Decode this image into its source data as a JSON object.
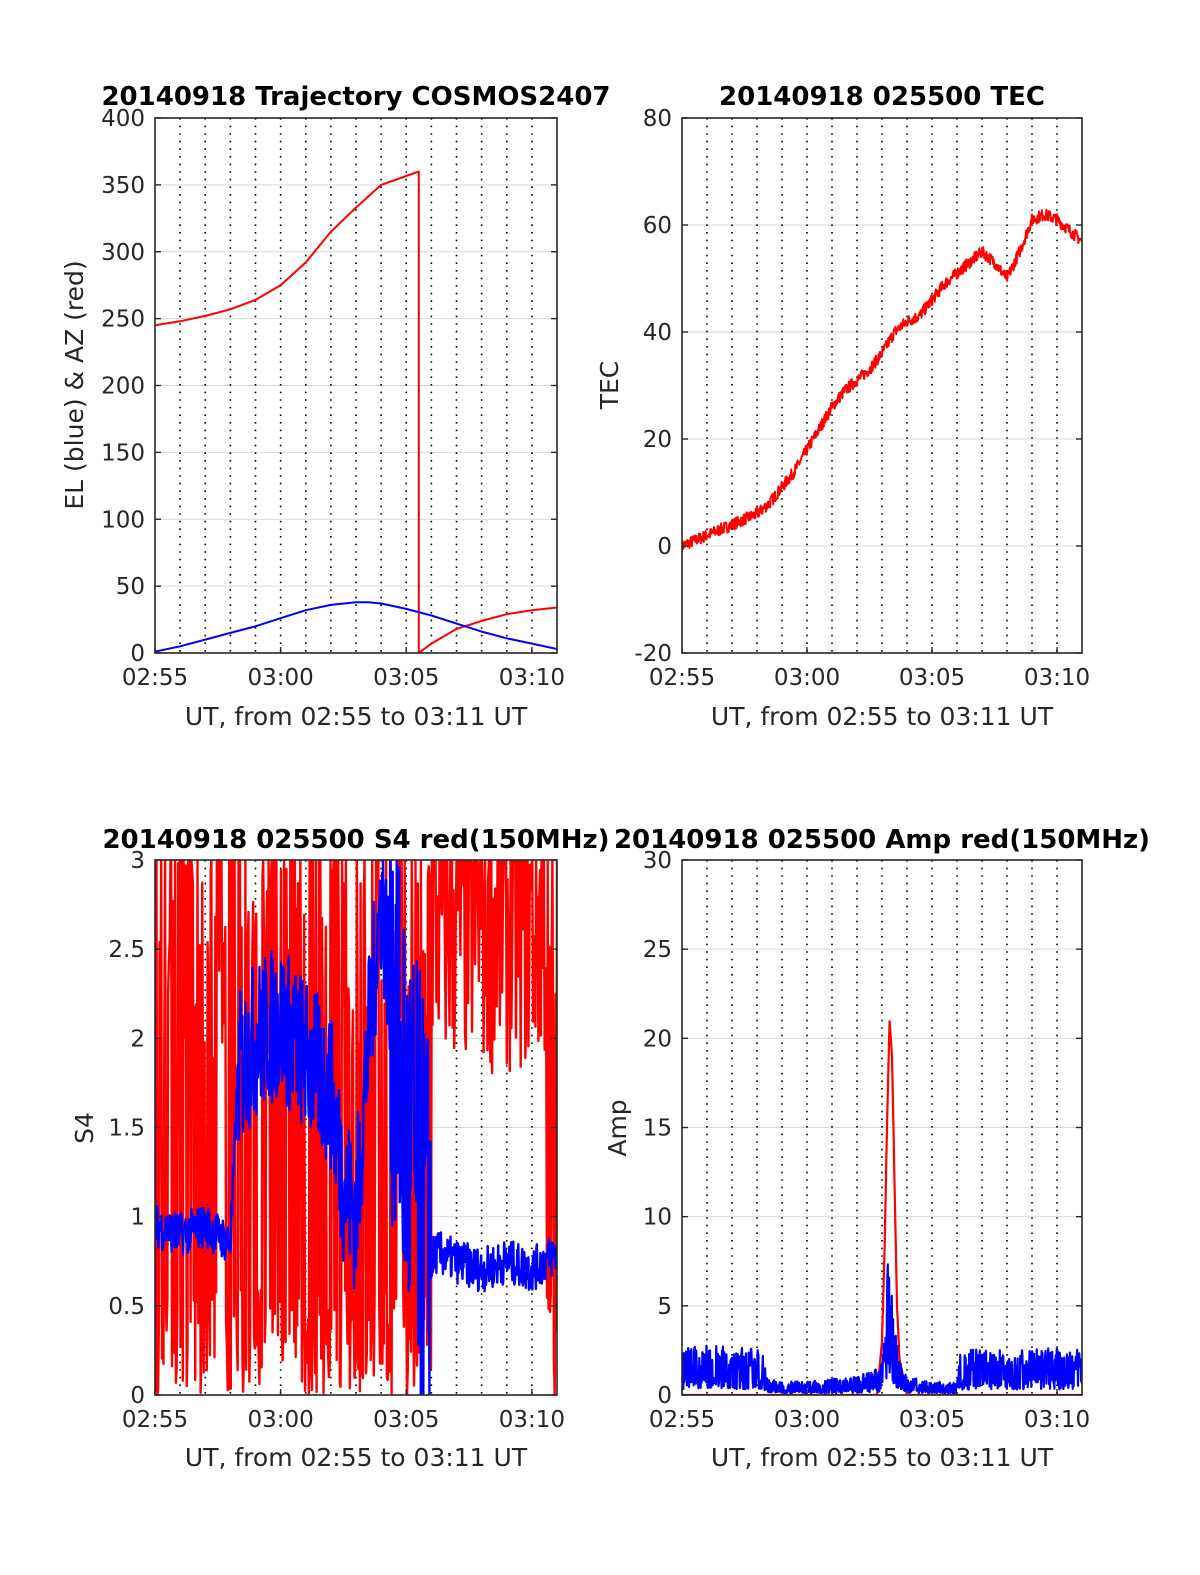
{
  "colors": {
    "series_red": "#ff0000",
    "series_blue": "#0000ff",
    "grid": "#d9d9d9",
    "dotted": "#000000"
  },
  "chart_data": [
    {
      "type": "line",
      "title": "20140918 Trajectory COSMOS2407",
      "xlabel": "UT, from 02:55 to 03:11 UT",
      "ylabel": "EL (blue) & AZ (red)",
      "x_unit": "minutes after 02:55",
      "xlim": [
        0,
        16
      ],
      "ylim": [
        0,
        400
      ],
      "xtick_values": [
        0,
        5,
        10,
        15
      ],
      "xtick_labels": [
        "02:55",
        "03:00",
        "03:05",
        "03:10"
      ],
      "ytick_labels": [
        "0",
        "50",
        "100",
        "150",
        "200",
        "250",
        "300",
        "350",
        "400"
      ],
      "grid": "horizontal solid + vertical dotted every minute",
      "series": [
        {
          "color": "#ff0000",
          "x": [
            0,
            1,
            2,
            3,
            4,
            5,
            6,
            7,
            8,
            9,
            10.5,
            10.5,
            11,
            12,
            13,
            14,
            15,
            16
          ],
          "y": [
            245,
            248,
            252,
            257,
            264,
            275,
            292,
            315,
            333,
            350,
            360,
            0,
            7,
            18,
            24,
            29,
            32,
            34
          ]
        },
        {
          "color": "#0000ff",
          "x": [
            0,
            1,
            2,
            3,
            4,
            5,
            6,
            7,
            8,
            8.5,
            9,
            10,
            11,
            12,
            13,
            14,
            15,
            16
          ],
          "y": [
            1,
            5,
            10,
            15,
            20,
            26,
            32,
            36,
            38,
            38,
            37,
            33,
            28,
            22,
            16,
            11,
            7,
            3
          ]
        }
      ]
    },
    {
      "type": "line",
      "title": "20140918 025500 TEC",
      "xlabel": "UT, from 02:55 to 03:11 UT",
      "ylabel": "TEC",
      "x_unit": "minutes after 02:55",
      "xlim": [
        0,
        16
      ],
      "ylim": [
        -20,
        80
      ],
      "xtick_values": [
        0,
        5,
        10,
        15
      ],
      "xtick_labels": [
        "02:55",
        "03:00",
        "03:05",
        "03:10"
      ],
      "ytick_labels": [
        "-20",
        "0",
        "20",
        "40",
        "60",
        "80"
      ],
      "grid": "horizontal solid + vertical dotted every minute",
      "series": [
        {
          "color": "#ff0000",
          "x": [
            0,
            0.5,
            1,
            1.5,
            2,
            2.5,
            3,
            3.5,
            4,
            4.5,
            5,
            5.5,
            6,
            6.5,
            7,
            7.5,
            8,
            8.5,
            9,
            9.5,
            10,
            10.5,
            11,
            11.5,
            12,
            12.5,
            13,
            13.5,
            14,
            14.5,
            15,
            15.5,
            16
          ],
          "y": [
            0,
            1,
            2,
            3,
            4,
            5,
            6,
            8,
            11,
            14,
            18,
            22,
            26,
            29,
            31,
            33,
            36,
            40,
            42,
            43,
            46,
            49,
            51,
            53,
            55,
            53,
            50,
            55,
            61,
            62,
            61,
            59,
            57
          ]
        }
      ]
    },
    {
      "type": "line",
      "title": "20140918 025500 S4 red(150MHz)",
      "xlabel": "UT, from 02:55 to 03:11 UT",
      "ylabel": "S4",
      "x_unit": "minutes after 02:55",
      "xlim": [
        0,
        16
      ],
      "ylim": [
        0,
        3
      ],
      "xtick_values": [
        0,
        5,
        10,
        15
      ],
      "xtick_labels": [
        "02:55",
        "03:00",
        "03:05",
        "03:10"
      ],
      "ytick_labels": [
        "0",
        "0.5",
        "1",
        "1.5",
        "2",
        "2.5",
        "3"
      ],
      "grid": "horizontal solid + vertical dotted every minute",
      "series": [
        {
          "color": "#ff0000",
          "pattern": "rapid oscillation 0 to >3 across whole interval"
        },
        {
          "color": "#0000ff",
          "x": [
            0,
            1,
            2,
            3,
            3.3,
            4,
            5,
            6,
            7,
            7.5,
            8,
            8.5,
            9,
            10,
            11,
            11.2,
            12,
            13,
            14,
            15,
            16
          ],
          "y": [
            0.95,
            0.9,
            0.95,
            0.85,
            1.8,
            2.0,
            2.1,
            1.9,
            1.7,
            1.2,
            1.0,
            2.0,
            2.8,
            1.5,
            0.75,
            0.8,
            0.75,
            0.7,
            0.75,
            0.7,
            0.8
          ]
        }
      ]
    },
    {
      "type": "line",
      "title": "20140918 025500 Amp red(150MHz)",
      "xlabel": "UT, from 02:55 to 03:11 UT",
      "ylabel": "Amp",
      "x_unit": "minutes after 02:55",
      "xlim": [
        0,
        16
      ],
      "ylim": [
        0,
        30
      ],
      "xtick_values": [
        0,
        5,
        10,
        15
      ],
      "xtick_labels": [
        "02:55",
        "03:00",
        "03:05",
        "03:10"
      ],
      "ytick_labels": [
        "0",
        "5",
        "10",
        "15",
        "20",
        "25",
        "30"
      ],
      "grid": "horizontal solid + vertical dotted every minute",
      "series": [
        {
          "color": "#ff0000",
          "x": [
            0,
            7.8,
            8.0,
            8.1,
            8.2,
            8.3,
            8.4,
            8.5,
            8.6,
            8.7,
            9.0,
            16
          ],
          "y": [
            0,
            0,
            3,
            8,
            15,
            21,
            19,
            12,
            5,
            2,
            0,
            0
          ]
        },
        {
          "color": "#0000ff",
          "x": [
            0,
            1,
            2,
            3,
            3.3,
            3.4,
            4,
            5,
            6,
            7,
            7.9,
            8.1,
            8.2,
            8.3,
            8.4,
            8.5,
            8.7,
            9,
            10,
            11,
            11.0,
            11.1,
            12,
            13,
            14,
            15,
            16
          ],
          "y": [
            2,
            2.2,
            2.1,
            2,
            1.9,
            0.7,
            0.6,
            0.6,
            0.7,
            0.8,
            1.2,
            2.5,
            5.5,
            7.5,
            5.0,
            3.0,
            1.5,
            0.8,
            0.6,
            0.5,
            0.5,
            2.0,
            2.0,
            2.0,
            2.1,
            2.0,
            2.0
          ]
        }
      ]
    }
  ]
}
